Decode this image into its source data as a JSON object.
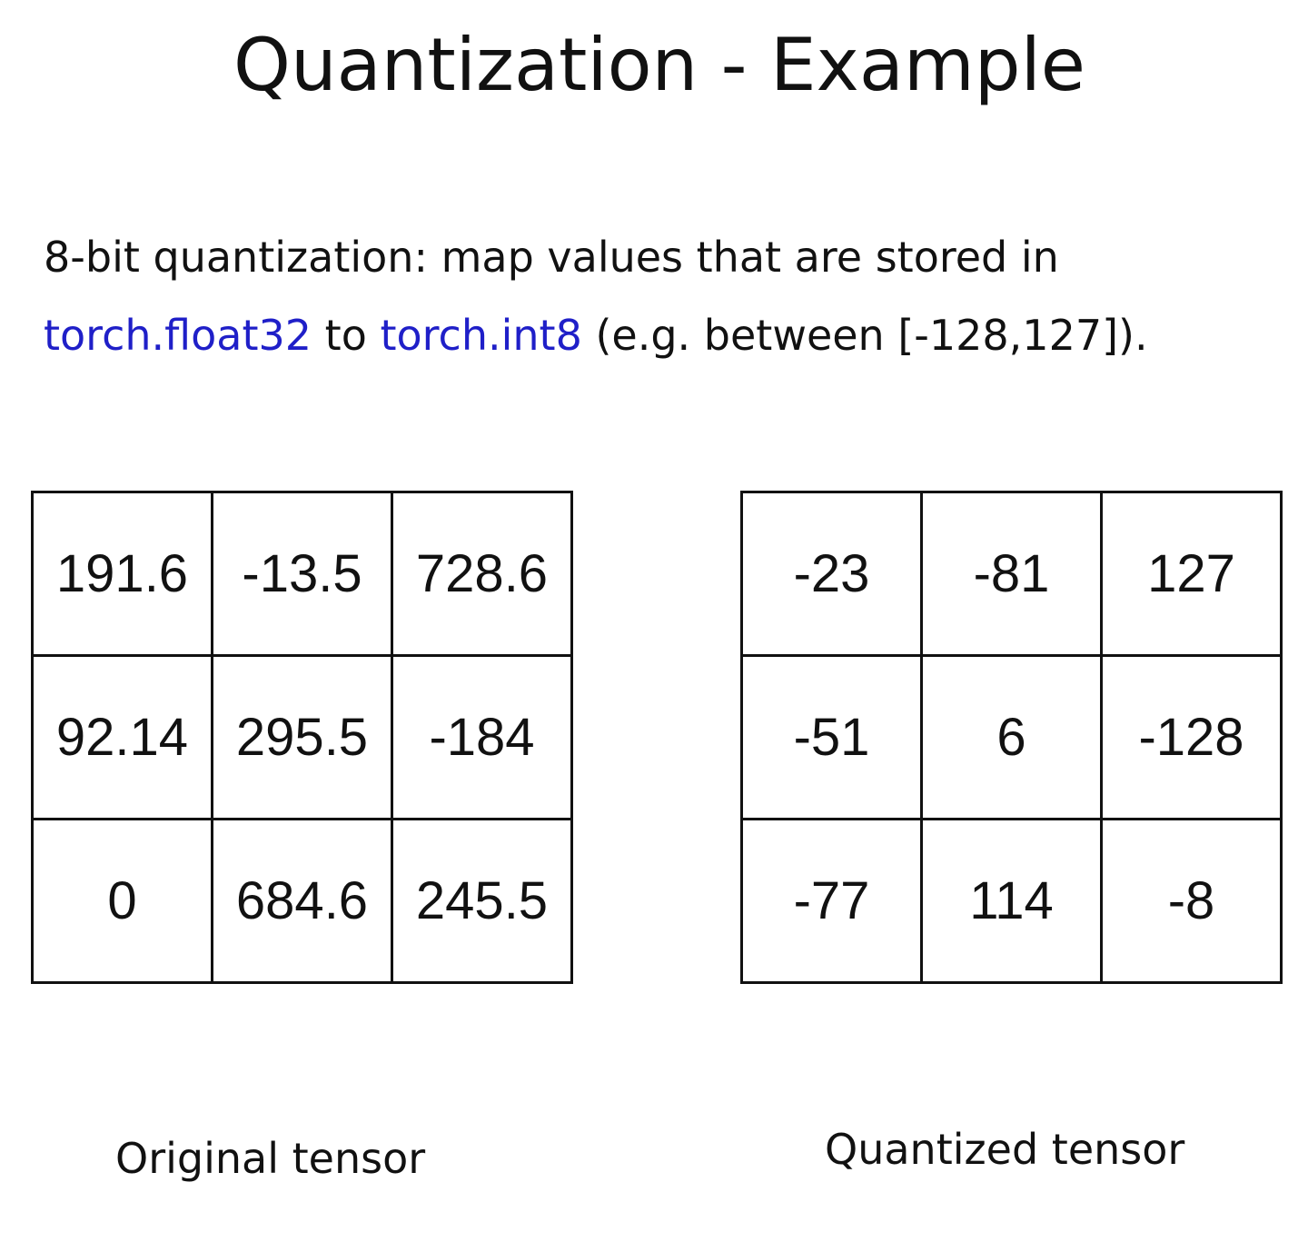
{
  "title": "Quantization - Example",
  "description": {
    "line1": "8-bit quantization: map values that are stored in",
    "from_type": "torch.float32",
    "connector": " to ",
    "to_type": "torch.int8",
    "range_text": " (e.g. between [-128,127])."
  },
  "original_tensor": {
    "caption": "Original tensor",
    "rows": [
      [
        "191.6",
        "-13.5",
        "728.6"
      ],
      [
        "92.14",
        "295.5",
        "-184"
      ],
      [
        "0",
        "684.6",
        "245.5"
      ]
    ]
  },
  "quantized_tensor": {
    "caption": "Quantized tensor",
    "rows": [
      [
        "-23",
        "-81",
        "127"
      ],
      [
        "-51",
        "6",
        "-128"
      ],
      [
        "-77",
        "114",
        "-8"
      ]
    ]
  },
  "colors": {
    "code_text": "#1f1fc8",
    "text": "#111111",
    "background": "#ffffff"
  }
}
